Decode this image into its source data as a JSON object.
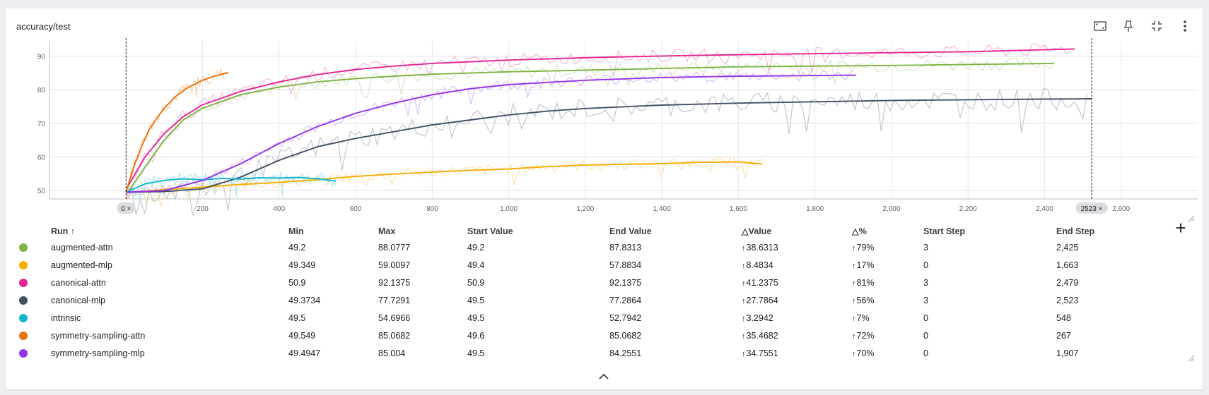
{
  "card": {
    "title": "accuracy/test"
  },
  "toolbar": {
    "icons": [
      "fit-domain-icon",
      "pin-icon",
      "collapse-icon",
      "more-vert-icon"
    ]
  },
  "chart_data": {
    "type": "line",
    "title": "accuracy/test",
    "xlabel": "",
    "ylabel": "",
    "xlim": [
      -200,
      2800
    ],
    "ylim": [
      47.5,
      94.5
    ],
    "x_ticks": [
      0,
      200,
      400,
      600,
      800,
      1000,
      1200,
      1400,
      1600,
      1800,
      2000,
      2200,
      2400,
      2600
    ],
    "x_tick_labels": [
      "",
      "200",
      "400",
      "600",
      "800",
      "1,000",
      "1,200",
      "1,400",
      "1,600",
      "1,800",
      "2,000",
      "2,200",
      "2,400",
      "2,600"
    ],
    "y_ticks": [
      50,
      60,
      70,
      80,
      90
    ],
    "grid": true,
    "range_markers": [
      {
        "label": "0 ×",
        "x": 0
      },
      {
        "label": "2523 ×",
        "x": 2523
      }
    ],
    "series": [
      {
        "name": "augmented-attn",
        "color": "#7cb342",
        "x": [
          3,
          50,
          100,
          150,
          200,
          300,
          400,
          500,
          600,
          700,
          800,
          1000,
          1200,
          1400,
          1600,
          1800,
          2000,
          2200,
          2425
        ],
        "y": [
          49.2,
          57,
          65,
          71,
          74.5,
          78.5,
          80.8,
          82.3,
          83.3,
          84,
          84.6,
          85.3,
          85.8,
          86.3,
          86.8,
          87,
          87.2,
          87.5,
          87.8
        ]
      },
      {
        "name": "augmented-mlp",
        "color": "#f9ab00",
        "x": [
          0,
          100,
          200,
          300,
          400,
          500,
          600,
          700,
          800,
          900,
          1000,
          1100,
          1200,
          1300,
          1400,
          1500,
          1600,
          1663
        ],
        "y": [
          49.4,
          50.3,
          51,
          51.8,
          52.4,
          53.2,
          54.2,
          54.9,
          55.5,
          56,
          56.4,
          57.1,
          57.6,
          57.8,
          58,
          58.4,
          58.5,
          57.9
        ]
      },
      {
        "name": "canonical-attn",
        "color": "#e52592",
        "x": [
          3,
          50,
          100,
          150,
          200,
          300,
          400,
          500,
          600,
          700,
          800,
          1000,
          1200,
          1400,
          1600,
          1800,
          2000,
          2200,
          2479
        ],
        "y": [
          50.9,
          60,
          67,
          72,
          75.5,
          79.5,
          82.3,
          84.5,
          86,
          87,
          87.8,
          88.8,
          89.5,
          90,
          90.4,
          90.7,
          91,
          91.3,
          92.1
        ]
      },
      {
        "name": "canonical-mlp",
        "color": "#425066",
        "x": [
          3,
          100,
          200,
          300,
          400,
          500,
          600,
          700,
          800,
          900,
          1000,
          1100,
          1200,
          1400,
          1600,
          1800,
          2000,
          2200,
          2400,
          2523
        ],
        "y": [
          49.5,
          49.7,
          50.5,
          54,
          59,
          63,
          65.5,
          67.5,
          69.5,
          71,
          72.5,
          73.6,
          74.4,
          75.4,
          76,
          76.4,
          76.8,
          77,
          77.2,
          77.3
        ]
      },
      {
        "name": "intrinsic",
        "color": "#12b5cb",
        "x": [
          0,
          50,
          100,
          150,
          200,
          250,
          300,
          350,
          400,
          450,
          500,
          548
        ],
        "y": [
          49.5,
          52,
          53,
          53.5,
          53.2,
          53.6,
          53.4,
          53.8,
          53.7,
          53.9,
          53.5,
          52.8
        ]
      },
      {
        "name": "symmetry-sampling-attn",
        "color": "#e8710a",
        "x": [
          0,
          20,
          40,
          60,
          80,
          100,
          130,
          160,
          200,
          230,
          267
        ],
        "y": [
          49.6,
          57,
          63,
          68,
          71.5,
          74.5,
          78,
          80.5,
          82.8,
          84,
          85.1
        ]
      },
      {
        "name": "symmetry-sampling-mlp",
        "color": "#9334e6",
        "x": [
          0,
          100,
          200,
          300,
          400,
          500,
          600,
          700,
          800,
          900,
          1000,
          1200,
          1400,
          1600,
          1800,
          1907
        ],
        "y": [
          49.5,
          50,
          53,
          58,
          64,
          69,
          73,
          76,
          78.5,
          80.3,
          81.5,
          82.8,
          83.6,
          84,
          84.2,
          84.3
        ]
      }
    ]
  },
  "table": {
    "headers": {
      "run": "Run ↑",
      "min": "Min",
      "max": "Max",
      "start_value": "Start Value",
      "end_value": "End Value",
      "delta_value": "△Value",
      "delta_pct": "△%",
      "start_step": "Start Step",
      "end_step": "End Step"
    },
    "rows": [
      {
        "color": "#7cb342",
        "run": "augmented-attn",
        "min": "49.2",
        "max": "88.0777",
        "start_value": "49.2",
        "end_value": "87.8313",
        "delta_value": "38.6313",
        "delta_pct": "79%",
        "start_step": "3",
        "end_step": "2,425"
      },
      {
        "color": "#f9ab00",
        "run": "augmented-mlp",
        "min": "49.349",
        "max": "59.0097",
        "start_value": "49.4",
        "end_value": "57.8834",
        "delta_value": "8.4834",
        "delta_pct": "17%",
        "start_step": "0",
        "end_step": "1,663"
      },
      {
        "color": "#e52592",
        "run": "canonical-attn",
        "min": "50.9",
        "max": "92.1375",
        "start_value": "50.9",
        "end_value": "92.1375",
        "delta_value": "41.2375",
        "delta_pct": "81%",
        "start_step": "3",
        "end_step": "2,479"
      },
      {
        "color": "#425066",
        "run": "canonical-mlp",
        "min": "49.3734",
        "max": "77.7291",
        "start_value": "49.5",
        "end_value": "77.2864",
        "delta_value": "27.7864",
        "delta_pct": "56%",
        "start_step": "3",
        "end_step": "2,523"
      },
      {
        "color": "#12b5cb",
        "run": "intrinsic",
        "min": "49.5",
        "max": "54.6966",
        "start_value": "49.5",
        "end_value": "52.7942",
        "delta_value": "3.2942",
        "delta_pct": "7%",
        "start_step": "0",
        "end_step": "548"
      },
      {
        "color": "#e8710a",
        "run": "symmetry-sampling-attn",
        "min": "49.549",
        "max": "85.0682",
        "start_value": "49.6",
        "end_value": "85.0682",
        "delta_value": "35.4682",
        "delta_pct": "72%",
        "start_step": "0",
        "end_step": "267"
      },
      {
        "color": "#9334e6",
        "run": "symmetry-sampling-mlp",
        "min": "49.4947",
        "max": "85.004",
        "start_value": "49.5",
        "end_value": "84.2551",
        "delta_value": "34.7551",
        "delta_pct": "70%",
        "start_step": "0",
        "end_step": "1,907"
      }
    ]
  },
  "add_column_label": "+"
}
